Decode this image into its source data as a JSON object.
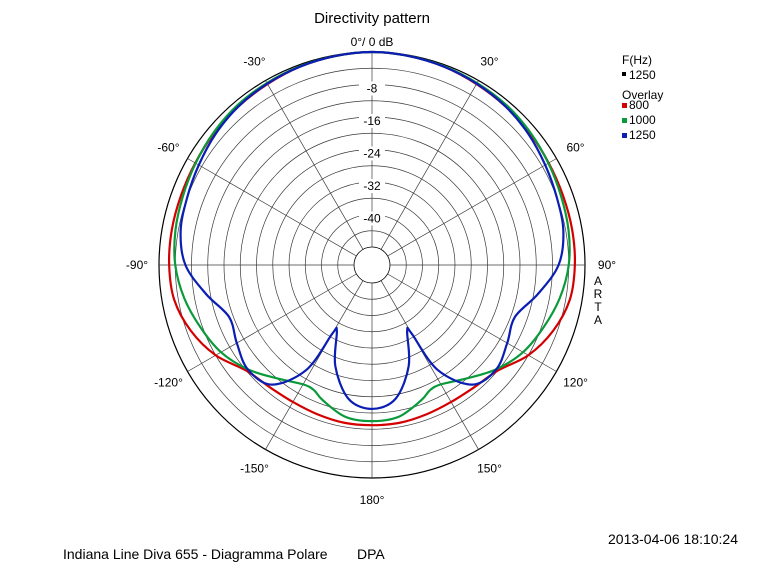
{
  "chart_data": {
    "type": "polar",
    "title": "Directivity pattern",
    "top_label": "0°/ 0 dB",
    "radial_unit": "dB",
    "rlim": [
      -48,
      0
    ],
    "radial_ticks": [
      "-8",
      "-16",
      "-24",
      "-32",
      "-40"
    ],
    "radial_tick_values": [
      -8,
      -16,
      -24,
      -32,
      -40
    ],
    "angle_labels": [
      "30°",
      "60°",
      "90°",
      "120°",
      "150°",
      "180°",
      "-150°",
      "-120°",
      "-90°",
      "-60°",
      "-30°"
    ],
    "angle_label_values": [
      30,
      60,
      90,
      120,
      150,
      180,
      210,
      240,
      270,
      300,
      330
    ],
    "grid": true,
    "legend": {
      "title": "F(Hz)",
      "current": "1250",
      "overlay_title": "Overlay",
      "placement": "top-right"
    },
    "series": [
      {
        "name": "800",
        "color": "#d40000",
        "angles": [
          0,
          10,
          20,
          30,
          40,
          50,
          60,
          70,
          80,
          90,
          100,
          110,
          120,
          130,
          140,
          150,
          160,
          170,
          180,
          190,
          200,
          210,
          220,
          230,
          240,
          250,
          260,
          270,
          280,
          290,
          300,
          310,
          320,
          330,
          340,
          350
        ],
        "values": [
          0,
          -0.2,
          -0.5,
          -1.0,
          -1.4,
          -1.8,
          -2.2,
          -2.4,
          -2.4,
          -2.5,
          -3.0,
          -5.0,
          -8.0,
          -12.0,
          -13.2,
          -13.5,
          -13.3,
          -13.0,
          -13.0,
          -13.0,
          -13.3,
          -13.5,
          -13.2,
          -12.0,
          -8.0,
          -5.0,
          -3.0,
          -2.5,
          -2.4,
          -2.4,
          -2.2,
          -1.8,
          -1.4,
          -1.0,
          -0.5,
          -0.2
        ]
      },
      {
        "name": "1000",
        "color": "#0a9a3a",
        "angles": [
          0,
          10,
          20,
          30,
          40,
          50,
          60,
          70,
          80,
          90,
          100,
          110,
          120,
          130,
          140,
          150,
          155,
          160,
          170,
          180,
          190,
          200,
          205,
          210,
          220,
          230,
          240,
          250,
          260,
          270,
          280,
          290,
          300,
          310,
          320,
          330,
          340,
          350
        ],
        "values": [
          0,
          -0.2,
          -0.4,
          -0.7,
          -1.0,
          -1.6,
          -2.3,
          -2.9,
          -3.3,
          -4.0,
          -5.5,
          -7.5,
          -9.5,
          -12.5,
          -16.0,
          -18.5,
          -18.5,
          -17.0,
          -14.5,
          -14.0,
          -14.5,
          -17.0,
          -18.5,
          -18.5,
          -16.0,
          -12.5,
          -9.5,
          -7.5,
          -5.5,
          -4.0,
          -3.3,
          -2.9,
          -2.3,
          -1.6,
          -1.0,
          -0.7,
          -0.4,
          -0.2
        ]
      },
      {
        "name": "1250",
        "color": "#0a1eb4",
        "angles": [
          0,
          10,
          20,
          30,
          40,
          50,
          60,
          70,
          80,
          90,
          100,
          110,
          120,
          130,
          140,
          148,
          150,
          152,
          160,
          170,
          180,
          190,
          200,
          208,
          210,
          212,
          220,
          230,
          240,
          250,
          260,
          270,
          280,
          290,
          300,
          310,
          320,
          330,
          340,
          350
        ],
        "values": [
          0,
          -0.2,
          -0.5,
          -0.9,
          -1.4,
          -2.2,
          -3.2,
          -4.0,
          -4.6,
          -6.5,
          -11.0,
          -15.0,
          -14.0,
          -12.5,
          -14.0,
          -22.0,
          -33.0,
          -34.0,
          -26.0,
          -19.0,
          -17.0,
          -19.0,
          -26.0,
          -34.0,
          -33.0,
          -22.0,
          -14.0,
          -12.5,
          -14.0,
          -15.0,
          -11.0,
          -6.5,
          -4.6,
          -4.0,
          -3.2,
          -2.2,
          -1.4,
          -0.9,
          -0.5,
          -0.2
        ]
      }
    ]
  },
  "side_label": [
    "A",
    "R",
    "T",
    "A"
  ],
  "timestamp": "2013-04-06  18:10:24",
  "footer": {
    "caption": "Indiana Line Diva 655 - Diagramma Polare",
    "tag": "DPA"
  }
}
